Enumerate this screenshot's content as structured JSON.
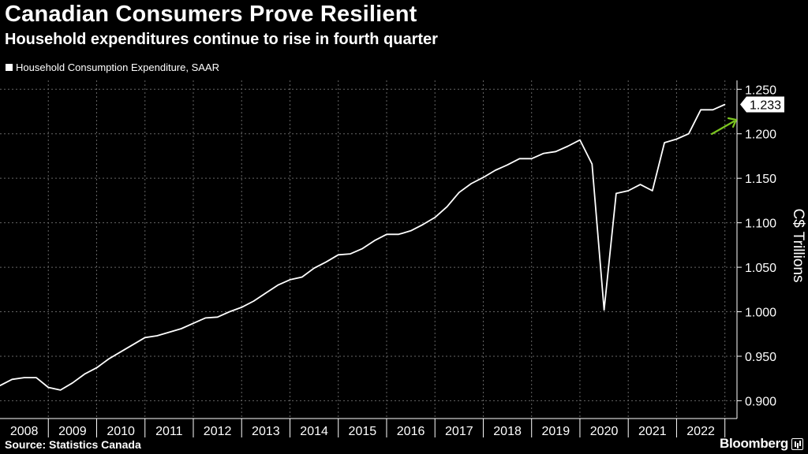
{
  "header": {
    "title": "Canadian Consumers Prove Resilient",
    "subtitle": "Household expenditures continue to rise in fourth quarter"
  },
  "legend": {
    "label": "Household Consumption Expenditure, SAAR"
  },
  "footer": {
    "source": "Source: Statistics Canada",
    "brand": "Bloomberg"
  },
  "colors": {
    "background": "#000000",
    "line": "#ffffff",
    "arrow": "#7cc520",
    "grid": "#666666"
  },
  "chart_data": {
    "type": "line",
    "title": "Canadian Consumers Prove Resilient",
    "subtitle": "Household expenditures continue to rise in fourth quarter",
    "ylabel": "C$ Trillions",
    "xlabel": "",
    "ylim": [
      0.88,
      1.26
    ],
    "yticks": [
      "0.900",
      "0.950",
      "1.000",
      "1.050",
      "1.100",
      "1.150",
      "1.200",
      "1.250"
    ],
    "categories": [
      "2008",
      "2009",
      "2010",
      "2011",
      "2012",
      "2013",
      "2014",
      "2015",
      "2016",
      "2017",
      "2018",
      "2019",
      "2020",
      "2021",
      "2022"
    ],
    "grid": true,
    "last_value_label": "1.233",
    "series": [
      {
        "name": "Household Consumption Expenditure, SAAR",
        "x": [
          2007.75,
          2008.0,
          2008.25,
          2008.5,
          2008.75,
          2009.0,
          2009.25,
          2009.5,
          2009.75,
          2010.0,
          2010.25,
          2010.5,
          2010.75,
          2011.0,
          2011.25,
          2011.5,
          2011.75,
          2012.0,
          2012.25,
          2012.5,
          2012.75,
          2013.0,
          2013.25,
          2013.5,
          2013.75,
          2014.0,
          2014.25,
          2014.5,
          2014.75,
          2015.0,
          2015.25,
          2015.5,
          2015.75,
          2016.0,
          2016.25,
          2016.5,
          2016.75,
          2017.0,
          2017.25,
          2017.5,
          2017.75,
          2018.0,
          2018.25,
          2018.5,
          2018.75,
          2019.0,
          2019.25,
          2019.5,
          2019.75,
          2020.0,
          2020.25,
          2020.5,
          2020.75,
          2021.0,
          2021.25,
          2021.5,
          2021.75,
          2022.0,
          2022.25,
          2022.5,
          2022.75
        ],
        "values": [
          0.917,
          0.924,
          0.926,
          0.926,
          0.915,
          0.912,
          0.92,
          0.93,
          0.937,
          0.947,
          0.955,
          0.963,
          0.971,
          0.973,
          0.977,
          0.981,
          0.987,
          0.993,
          0.994,
          1.0,
          1.005,
          1.012,
          1.021,
          1.03,
          1.036,
          1.039,
          1.049,
          1.056,
          1.064,
          1.065,
          1.071,
          1.08,
          1.087,
          1.087,
          1.091,
          1.098,
          1.106,
          1.118,
          1.134,
          1.144,
          1.151,
          1.159,
          1.165,
          1.172,
          1.172,
          1.178,
          1.18,
          1.186,
          1.193,
          1.166,
          1.002,
          1.133,
          1.136,
          1.143,
          1.136,
          1.19,
          1.194,
          1.2,
          1.227,
          1.227,
          1.233
        ]
      }
    ]
  }
}
